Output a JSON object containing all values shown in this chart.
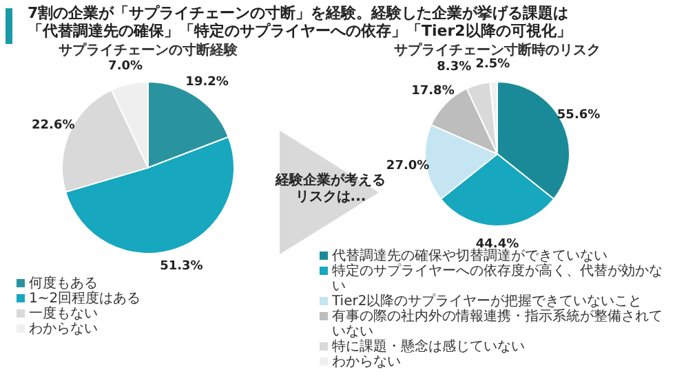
{
  "chart_data": [
    {
      "type": "pie",
      "title": "サプライチェーンの寸断経験",
      "annotations": [
        "7割の企業が「サプライチェーンの寸断」を経験。経験した企業が挙げる課題は「代替調達先の確保」「特定のサプライヤーへの依存」「Tier2以降の可視化」"
      ],
      "categories": [
        "何度もある",
        "1~2回程度はある",
        "一度もない",
        "わからない"
      ],
      "values": [
        19.2,
        51.3,
        22.6,
        7.0
      ],
      "value_labels": [
        "19.2%",
        "51.3%",
        "22.6%",
        "7.0%"
      ],
      "colors": [
        "#2a93a0",
        "#17a7bf",
        "#d9d9d9",
        "#efefef"
      ],
      "legend": "bottom"
    },
    {
      "type": "pie",
      "title": "サプライチェーン寸断時のリスク",
      "annotations": [
        "経験企業が考えるリスクは..."
      ],
      "categories": [
        "代替調達先の確保や切替調達ができていない",
        "特定のサプライヤーへの依存度が高く、代替が効かない",
        "Tier2以降のサプライヤーが把握できていないこと",
        "有事の際の社内外の情報連携・指示系統が整備されていない",
        "特に課題・懸念は感じていない",
        "わからない"
      ],
      "values": [
        55.6,
        44.4,
        27.0,
        17.8,
        8.3,
        2.5
      ],
      "value_labels": [
        "55.6%",
        "44.4%",
        "27.0%",
        "17.8%",
        "8.3%",
        "2.5%"
      ],
      "colors": [
        "#1a8a99",
        "#17a7bf",
        "#c5e5f2",
        "#bdbdbd",
        "#d9d9d9",
        "#f0f0f0"
      ],
      "legend": "bottom"
    }
  ]
}
